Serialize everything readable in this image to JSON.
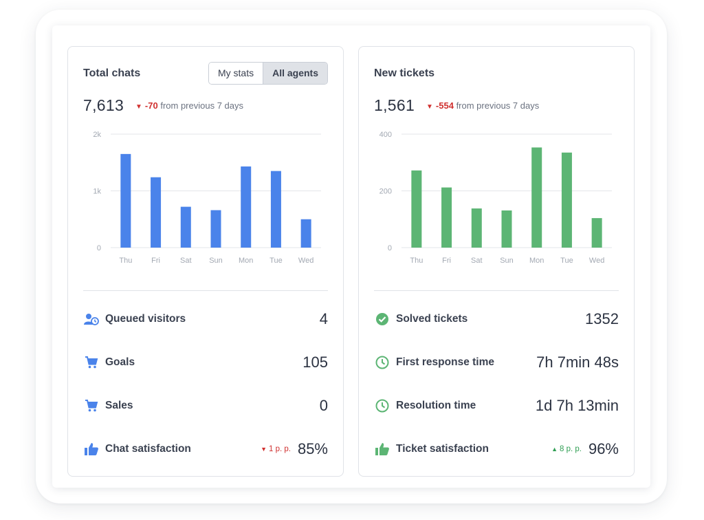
{
  "total_chats": {
    "title": "Total chats",
    "toggle": {
      "my_stats": "My stats",
      "all_agents": "All agents"
    },
    "total": "7,613",
    "delta_value": "-70",
    "delta_text": "from previous 7 days",
    "chart_data": {
      "type": "bar",
      "categories": [
        "Thu",
        "Fri",
        "Sat",
        "Sun",
        "Mon",
        "Tue",
        "Wed"
      ],
      "values": [
        1650,
        1240,
        720,
        660,
        1430,
        1350,
        500
      ],
      "y_ticks": [
        "2k",
        "1k",
        "0"
      ],
      "ylim": [
        0,
        2000
      ],
      "color": "#4a83ea"
    },
    "stats": [
      {
        "icon": "queued-visitors-icon",
        "label": "Queued visitors",
        "value": "4"
      },
      {
        "icon": "cart-icon",
        "label": "Goals",
        "value": "105"
      },
      {
        "icon": "cart-icon",
        "label": "Sales",
        "value": "0"
      },
      {
        "icon": "thumbs-up-icon",
        "label": "Chat satisfaction",
        "change": "1 p. p.",
        "change_dir": "down",
        "value": "85%"
      }
    ]
  },
  "new_tickets": {
    "title": "New tickets",
    "total": "1,561",
    "delta_value": "-554",
    "delta_text": "from previous 7 days",
    "chart_data": {
      "type": "bar",
      "categories": [
        "Thu",
        "Fri",
        "Sat",
        "Sun",
        "Mon",
        "Tue",
        "Wed"
      ],
      "values": [
        272,
        212,
        138,
        131,
        353,
        335,
        104
      ],
      "y_ticks": [
        "400",
        "200",
        "0"
      ],
      "ylim": [
        0,
        400
      ],
      "color": "#5cb574"
    },
    "stats": [
      {
        "icon": "check-circle-icon",
        "label": "Solved tickets",
        "value": "1352"
      },
      {
        "icon": "clock-icon",
        "label": "First response time",
        "value": "7h 7min 48s"
      },
      {
        "icon": "clock-icon",
        "label": "Resolution time",
        "value": "1d 7h 13min"
      },
      {
        "icon": "thumbs-up-icon",
        "label": "Ticket satisfaction",
        "change": "8 p. p.",
        "change_dir": "up",
        "value": "96%"
      }
    ]
  },
  "colors": {
    "blue": "#4a83ea",
    "green": "#5cb574",
    "negative": "#d0302f",
    "positive": "#2f9e53"
  }
}
